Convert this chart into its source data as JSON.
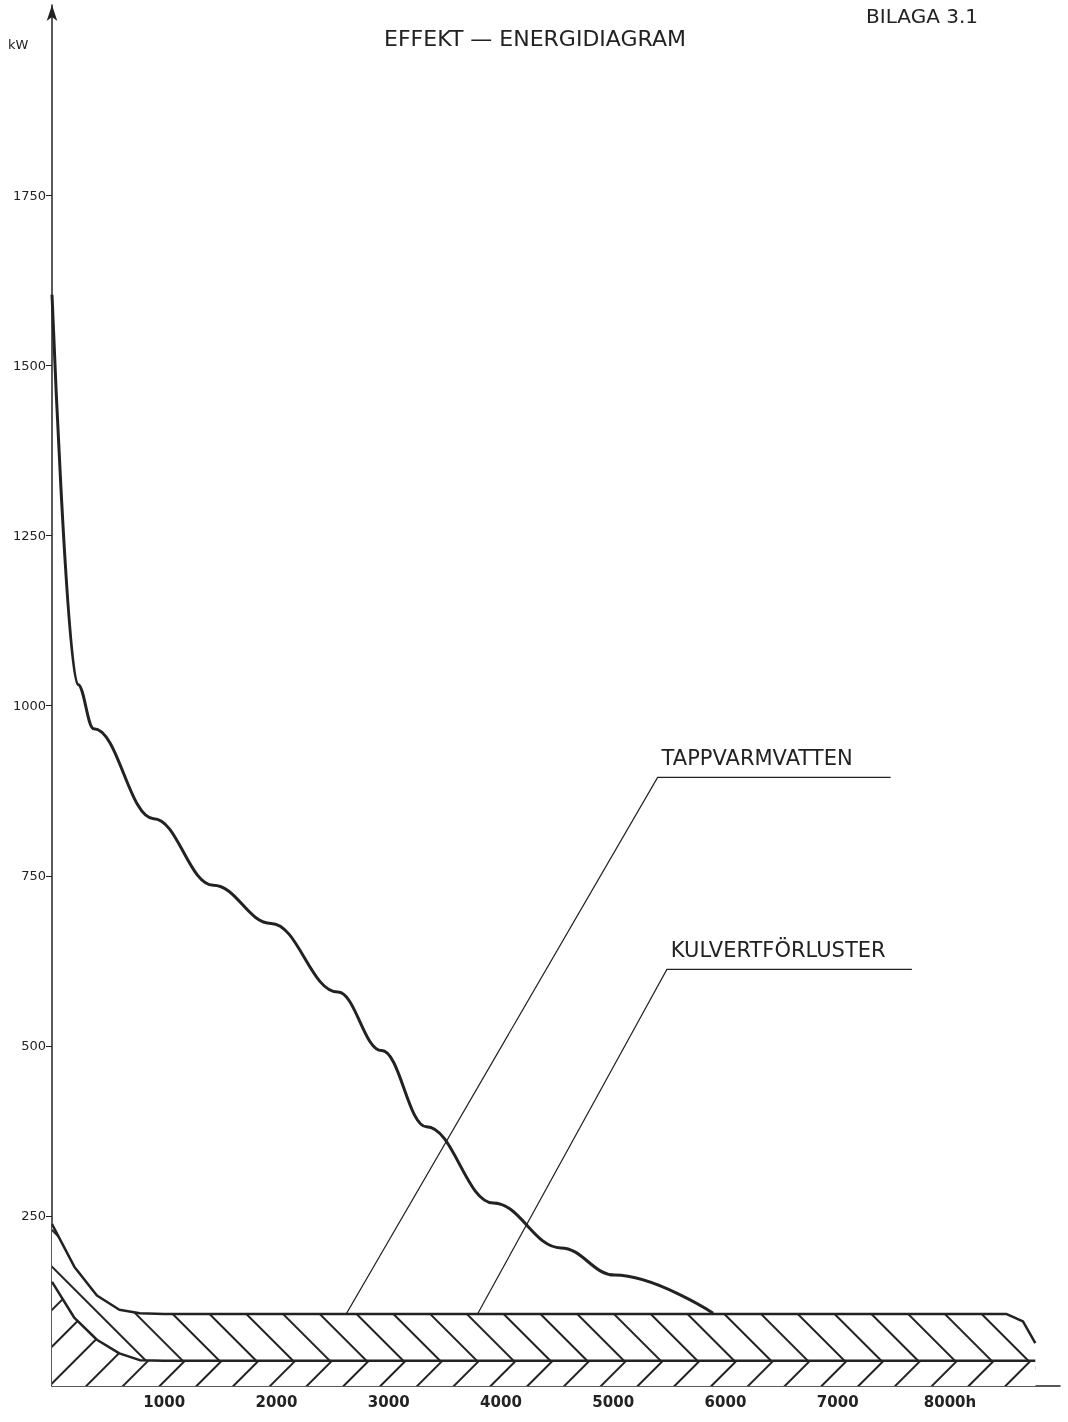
{
  "chart_data": {
    "type": "area",
    "title": "EFFEKT — ENERGIDIAGRAM",
    "ylabel": "kW",
    "annotations": [
      "BILAGA 3.1"
    ],
    "stacked": true,
    "x": [
      0,
      200,
      400,
      600,
      782,
      1000,
      2000,
      3000,
      4000,
      5000,
      6000,
      7000,
      8000,
      8500,
      8650,
      8760
    ],
    "series": [
      {
        "name": "KULVERTFÖRLUSTER",
        "color": "#222222",
        "values": [
          153,
          100,
          68,
          48,
          38,
          37,
          37,
          37,
          37,
          37,
          37,
          37,
          37,
          37,
          37,
          37
        ]
      },
      {
        "name": "TAPPVARMVATTEN",
        "color": "#222222",
        "values": [
          85,
          75,
          65,
          64,
          69,
          69,
          69,
          69,
          69,
          69,
          69,
          69,
          69,
          69,
          58,
          26
        ]
      },
      {
        "type": "line",
        "color": "#222222",
        "x": [
          0,
          230,
          373,
          905,
          1437,
          1952,
          2546,
          2937,
          3336,
          3931,
          4534,
          5013,
          5890
        ],
        "values": [
          1604,
          1031,
          966,
          834,
          736,
          680,
          579,
          493,
          381,
          269,
          203,
          163,
          107
        ]
      }
    ],
    "xlim": [
      0,
      8980
    ],
    "ylim": [
      0,
      2030
    ],
    "xticks": [
      1000,
      2000,
      3000,
      4000,
      5000,
      6000,
      7000,
      {
        "value": 8000,
        "label": "8000h"
      }
    ],
    "yticks": [
      250,
      500,
      750,
      1000,
      1250,
      1500,
      1750
    ],
    "grid": false,
    "legend": false,
    "marker": "none",
    "line_style": "solid"
  }
}
